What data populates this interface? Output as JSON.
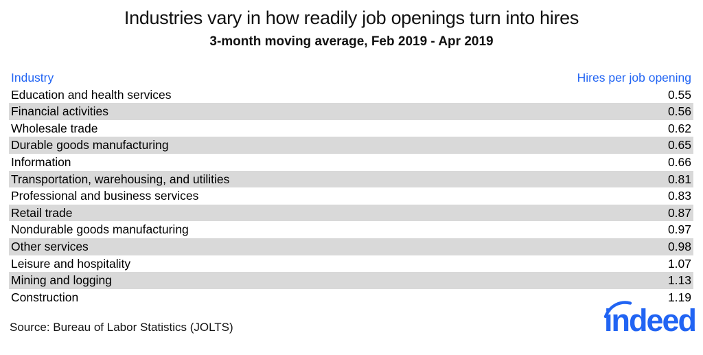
{
  "chart_data": {
    "type": "table",
    "title": "Industries vary in how readily job openings turn into hires",
    "subtitle": "3-month moving average, Feb 2019 - Apr 2019",
    "columns": [
      "Industry",
      "Hires per job opening"
    ],
    "categories": [
      "Education and health services",
      "Financial activities",
      "Wholesale trade",
      "Durable goods manufacturing",
      "Information",
      "Transportation, warehousing, and utilities",
      "Professional and business services",
      "Retail trade",
      "Nondurable goods manufacturing",
      "Other services",
      "Leisure and hospitality",
      "Mining and logging",
      "Construction"
    ],
    "values": [
      0.55,
      0.56,
      0.62,
      0.65,
      0.66,
      0.81,
      0.83,
      0.87,
      0.97,
      0.98,
      1.07,
      1.13,
      1.19
    ]
  },
  "footer": {
    "source": "Source: Bureau of Labor Statistics (JOLTS)",
    "logo_text": "indeed"
  },
  "colors": {
    "accent_blue": "#2164f3",
    "row_stripe_gray": "#d9d9d9",
    "text_black": "#111111",
    "background": "#ffffff"
  }
}
